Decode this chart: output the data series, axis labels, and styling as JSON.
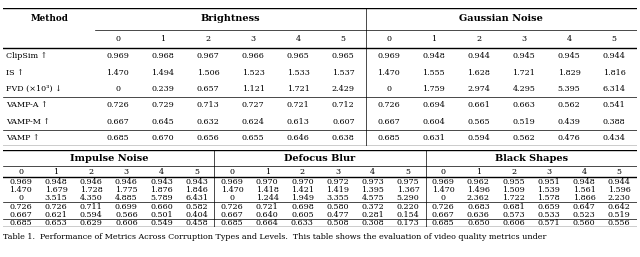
{
  "top_table": {
    "brightness_header": "Brightness",
    "gaussian_header": "Gaussian Noise",
    "method_col_label": "Method",
    "col_labels": [
      "0",
      "1",
      "2",
      "3",
      "4",
      "5",
      "0",
      "1",
      "2",
      "3",
      "4",
      "5"
    ],
    "rows": [
      {
        "method": "ClipSim ↑",
        "vals": [
          "0.969",
          "0.968",
          "0.967",
          "0.966",
          "0.965",
          "0.965",
          "0.969",
          "0.948",
          "0.944",
          "0.945",
          "0.945",
          "0.944"
        ]
      },
      {
        "method": "IS ↑",
        "vals": [
          "1.470",
          "1.494",
          "1.506",
          "1.523",
          "1.533",
          "1.537",
          "1.470",
          "1.555",
          "1.628",
          "1.721",
          "1.829",
          "1.816"
        ]
      },
      {
        "method": "FVD (×10³) ↓",
        "vals": [
          "0",
          "0.239",
          "0.657",
          "1.121",
          "1.721",
          "2.429",
          "0",
          "1.759",
          "2.974",
          "4.295",
          "5.395",
          "6.314"
        ]
      },
      {
        "method": "VAMP-A ↑",
        "vals": [
          "0.726",
          "0.729",
          "0.713",
          "0.727",
          "0.721",
          "0.712",
          "0.726",
          "0.694",
          "0.661",
          "0.663",
          "0.562",
          "0.541"
        ]
      },
      {
        "method": "VAMP-M ↑",
        "vals": [
          "0.667",
          "0.645",
          "0.632",
          "0.624",
          "0.613",
          "0.607",
          "0.667",
          "0.604",
          "0.565",
          "0.519",
          "0.439",
          "0.388"
        ]
      },
      {
        "method": "VAMP ↑",
        "vals": [
          "0.685",
          "0.670",
          "0.656",
          "0.655",
          "0.646",
          "0.638",
          "0.685",
          "0.631",
          "0.594",
          "0.562",
          "0.476",
          "0.434"
        ]
      }
    ]
  },
  "bottom_table": {
    "impulse_header": "Impulse Noise",
    "defocus_header": "Defocus Blur",
    "black_header": "Black Shapes",
    "col_labels": [
      "0",
      "1",
      "2",
      "3",
      "4",
      "5",
      "0",
      "1",
      "2",
      "3",
      "4",
      "5",
      "0",
      "1",
      "2",
      "3",
      "4",
      "5"
    ],
    "rows": [
      {
        "vals": [
          "0.969",
          "0.948",
          "0.946",
          "0.946",
          "0.943",
          "0.943",
          "0.969",
          "0.970",
          "0.970",
          "0.972",
          "0.973",
          "0.975",
          "0.969",
          "0.962",
          "0.955",
          "0.951",
          "0.948",
          "0.944"
        ]
      },
      {
        "vals": [
          "1.470",
          "1.679",
          "1.728",
          "1.775",
          "1.876",
          "1.846",
          "1.470",
          "1.418",
          "1.421",
          "1.419",
          "1.395",
          "1.367",
          "1.470",
          "1.496",
          "1.509",
          "1.539",
          "1.561",
          "1.596"
        ]
      },
      {
        "vals": [
          "0",
          "3.515",
          "4.350",
          "4.885",
          "5.789",
          "6.431",
          "0",
          "1.244",
          "1.949",
          "3.355",
          "4.575",
          "5.290",
          "0",
          "2.362",
          "1.722",
          "1.578",
          "1.866",
          "2.230"
        ]
      },
      {
        "vals": [
          "0.726",
          "0.726",
          "0.711",
          "0.699",
          "0.660",
          "0.582",
          "0.726",
          "0.721",
          "0.698",
          "0.580",
          "0.372",
          "0.220",
          "0.726",
          "0.683",
          "0.681",
          "0.659",
          "0.647",
          "0.642"
        ]
      },
      {
        "vals": [
          "0.667",
          "0.621",
          "0.594",
          "0.566",
          "0.501",
          "0.404",
          "0.667",
          "0.640",
          "0.605",
          "0.477",
          "0.281",
          "0.154",
          "0.667",
          "0.636",
          "0.573",
          "0.533",
          "0.523",
          "0.519"
        ]
      },
      {
        "vals": [
          "0.685",
          "0.653",
          "0.629",
          "0.606",
          "0.549",
          "0.458",
          "0.685",
          "0.664",
          "0.633",
          "0.508",
          "0.308",
          "0.173",
          "0.685",
          "0.650",
          "0.606",
          "0.571",
          "0.560",
          "0.556"
        ]
      }
    ]
  },
  "caption": "Table 1.  Performance of Metrics Across Corruption Types and Levels.  This table shows the evaluation of video quality metrics under",
  "bg_color": "#ffffff",
  "line_color": "#000000",
  "font_size": 5.8,
  "header_font_size": 7.0,
  "caption_font_size": 5.8
}
